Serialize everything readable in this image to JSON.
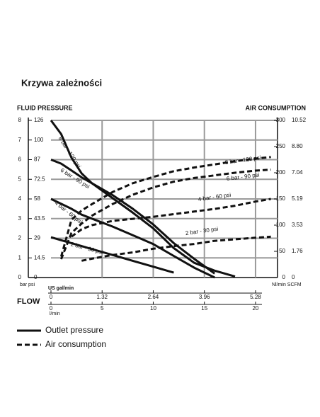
{
  "chart_data": {
    "type": "line",
    "title": "Krzywa zależności",
    "y_axis_label": "FLUID PRESSURE",
    "y2_axis_label": "AIR CONSUMPTION",
    "y_units": "bar psi",
    "y2_units": "Nl/min SCFM",
    "x_axis_label": "FLOW",
    "x_units": "l/min",
    "x2_units": "US gal/min",
    "x": [
      0,
      1,
      2,
      3,
      4,
      6,
      8,
      10,
      12,
      14,
      16,
      18,
      20,
      21.5
    ],
    "xlim": [
      0,
      22.15
    ],
    "xticks": [
      0,
      5,
      10,
      15,
      20
    ],
    "x2ticks": [
      {
        "value": 0,
        "label": "0"
      },
      {
        "value": 5,
        "label": "1.32"
      },
      {
        "value": 10,
        "label": "2.64"
      },
      {
        "value": 15,
        "label": "3.96"
      },
      {
        "value": 20,
        "label": "5.28"
      }
    ],
    "ylim": [
      0,
      8
    ],
    "yticks": [
      0,
      1,
      2,
      3,
      4,
      5,
      6,
      7,
      8
    ],
    "yticks_psi": [
      {
        "value": 0,
        "label": "0"
      },
      {
        "value": 1,
        "label": "14.5"
      },
      {
        "value": 2,
        "label": "29"
      },
      {
        "value": 3,
        "label": "43.5"
      },
      {
        "value": 4,
        "label": "58"
      },
      {
        "value": 5,
        "label": "72.5"
      },
      {
        "value": 6,
        "label": "87"
      },
      {
        "value": 7,
        "label": "100"
      },
      {
        "value": 8,
        "label": "126"
      }
    ],
    "y2lim": [
      0,
      300
    ],
    "y2ticks": [
      0,
      50,
      100,
      150,
      200,
      250,
      300
    ],
    "y2ticks_scfm": [
      {
        "value": 0,
        "label": "0"
      },
      {
        "value": 50,
        "label": "1.76"
      },
      {
        "value": 100,
        "label": "3.53"
      },
      {
        "value": 150,
        "label": "5.19"
      },
      {
        "value": 200,
        "label": "7.04"
      },
      {
        "value": 250,
        "label": "8.80"
      },
      {
        "value": 300,
        "label": "10.52"
      }
    ],
    "grid": true,
    "series": [
      {
        "name": "8 bar - 120 psi",
        "color": "#111111",
        "style": "solid",
        "values": [
          8,
          7.3,
          6.1,
          5.3,
          4.8,
          4.05,
          3.3,
          2.5,
          1.5,
          0.75,
          0.35,
          0.05,
          null,
          null
        ]
      },
      {
        "name": "6 bar - 90 psi",
        "color": "#111111",
        "style": "solid",
        "values": [
          6,
          5.8,
          5.45,
          5.1,
          4.8,
          4.2,
          3.5,
          2.7,
          1.75,
          0.95,
          0.2,
          null,
          null,
          null
        ]
      },
      {
        "name": "4 bar - 60 psi",
        "color": "#111111",
        "style": "solid",
        "values": [
          4,
          3.75,
          3.5,
          3.2,
          3,
          2.6,
          2.15,
          1.7,
          1.1,
          0.5,
          0,
          null,
          null,
          null
        ]
      },
      {
        "name": "2 bar - 30 psi",
        "color": "#111111",
        "style": "solid",
        "values": [
          2.05,
          1.9,
          1.75,
          1.6,
          1.45,
          1.15,
          0.85,
          0.55,
          0.25,
          null,
          null,
          null,
          null,
          null
        ]
      },
      {
        "name": "8 bar - 120 psi",
        "color": "#111111",
        "style": "dashed",
        "axis": "y2",
        "values": [
          null,
          40,
          110,
          128,
          140,
          163,
          180,
          192,
          203,
          210,
          216,
          222,
          227,
          230
        ]
      },
      {
        "name": "6 bar - 90 psi",
        "color": "#111111",
        "style": "dashed",
        "axis": "y2",
        "values": [
          null,
          35,
          85,
          103,
          118,
          140,
          158,
          172,
          183,
          190,
          195,
          200,
          204,
          206
        ]
      },
      {
        "name": "4 bar - 60 psi",
        "color": "#111111",
        "style": "dashed",
        "axis": "y2",
        "values": [
          null,
          null,
          78,
          92,
          100,
          108,
          112,
          116,
          121,
          126,
          131,
          137,
          145,
          150
        ]
      },
      {
        "name": "2 bar - 30 psi",
        "color": "#111111",
        "style": "dashed",
        "axis": "y2",
        "values": [
          null,
          null,
          null,
          32,
          36,
          43,
          48,
          55,
          60,
          64,
          70,
          73,
          76,
          78
        ]
      }
    ],
    "legend": [
      {
        "label": "Outlet pressure",
        "style": "solid"
      },
      {
        "label": "Air consumption",
        "style": "dashed"
      }
    ]
  }
}
